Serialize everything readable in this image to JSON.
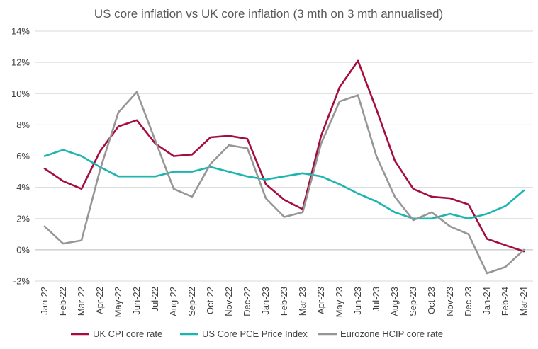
{
  "chart_data": {
    "type": "line",
    "title": "US core inflation vs UK core inflation (3 mth on 3 mth annualised)",
    "xlabel": "",
    "ylabel": "",
    "ylim": [
      -2,
      14
    ],
    "yticks": [
      -2,
      0,
      2,
      4,
      6,
      8,
      10,
      12,
      14
    ],
    "ytick_labels": [
      "-2%",
      "0%",
      "2%",
      "4%",
      "6%",
      "8%",
      "10%",
      "12%",
      "14%"
    ],
    "grid": true,
    "legend_position": "bottom",
    "categories": [
      "Jan-22",
      "Feb-22",
      "Mar-22",
      "Apr-22",
      "May-22",
      "Jun-22",
      "Jul-22",
      "Aug-22",
      "Sep-22",
      "Oct-22",
      "Nov-22",
      "Dec-22",
      "Jan-23",
      "Feb-23",
      "Mar-23",
      "Apr-23",
      "May-23",
      "Jun-23",
      "Jul-23",
      "Aug-23",
      "Sep-23",
      "Oct-23",
      "Nov-23",
      "Dec-23",
      "Jan-24",
      "Feb-24",
      "Mar-24"
    ],
    "series": [
      {
        "name": "UK CPI core rate",
        "color": "#a50e3c",
        "values": [
          5.2,
          4.4,
          3.9,
          6.3,
          7.9,
          8.3,
          6.8,
          6.0,
          6.1,
          7.2,
          7.3,
          7.1,
          4.2,
          3.2,
          2.6,
          7.3,
          10.4,
          12.1,
          9.0,
          5.7,
          3.9,
          3.4,
          3.3,
          2.9,
          0.7,
          0.3,
          -0.1
        ]
      },
      {
        "name": "US Core PCE Price Index",
        "color": "#1cb5b0",
        "values": [
          6.0,
          6.4,
          6.0,
          5.3,
          4.7,
          4.7,
          4.7,
          5.0,
          5.0,
          5.3,
          5.0,
          4.7,
          4.5,
          4.7,
          4.9,
          4.7,
          4.2,
          3.6,
          3.1,
          2.4,
          2.0,
          2.0,
          2.3,
          2.0,
          2.3,
          2.8,
          3.8
        ]
      },
      {
        "name": "Eurozone HCIP core rate",
        "color": "#969696",
        "values": [
          1.5,
          0.4,
          0.6,
          5.1,
          8.8,
          10.1,
          7.0,
          3.9,
          3.4,
          5.5,
          6.7,
          6.5,
          3.3,
          2.1,
          2.4,
          6.8,
          9.5,
          9.9,
          6.0,
          3.4,
          1.9,
          2.4,
          1.5,
          1.0,
          -1.5,
          -1.1,
          0.0
        ]
      }
    ]
  }
}
